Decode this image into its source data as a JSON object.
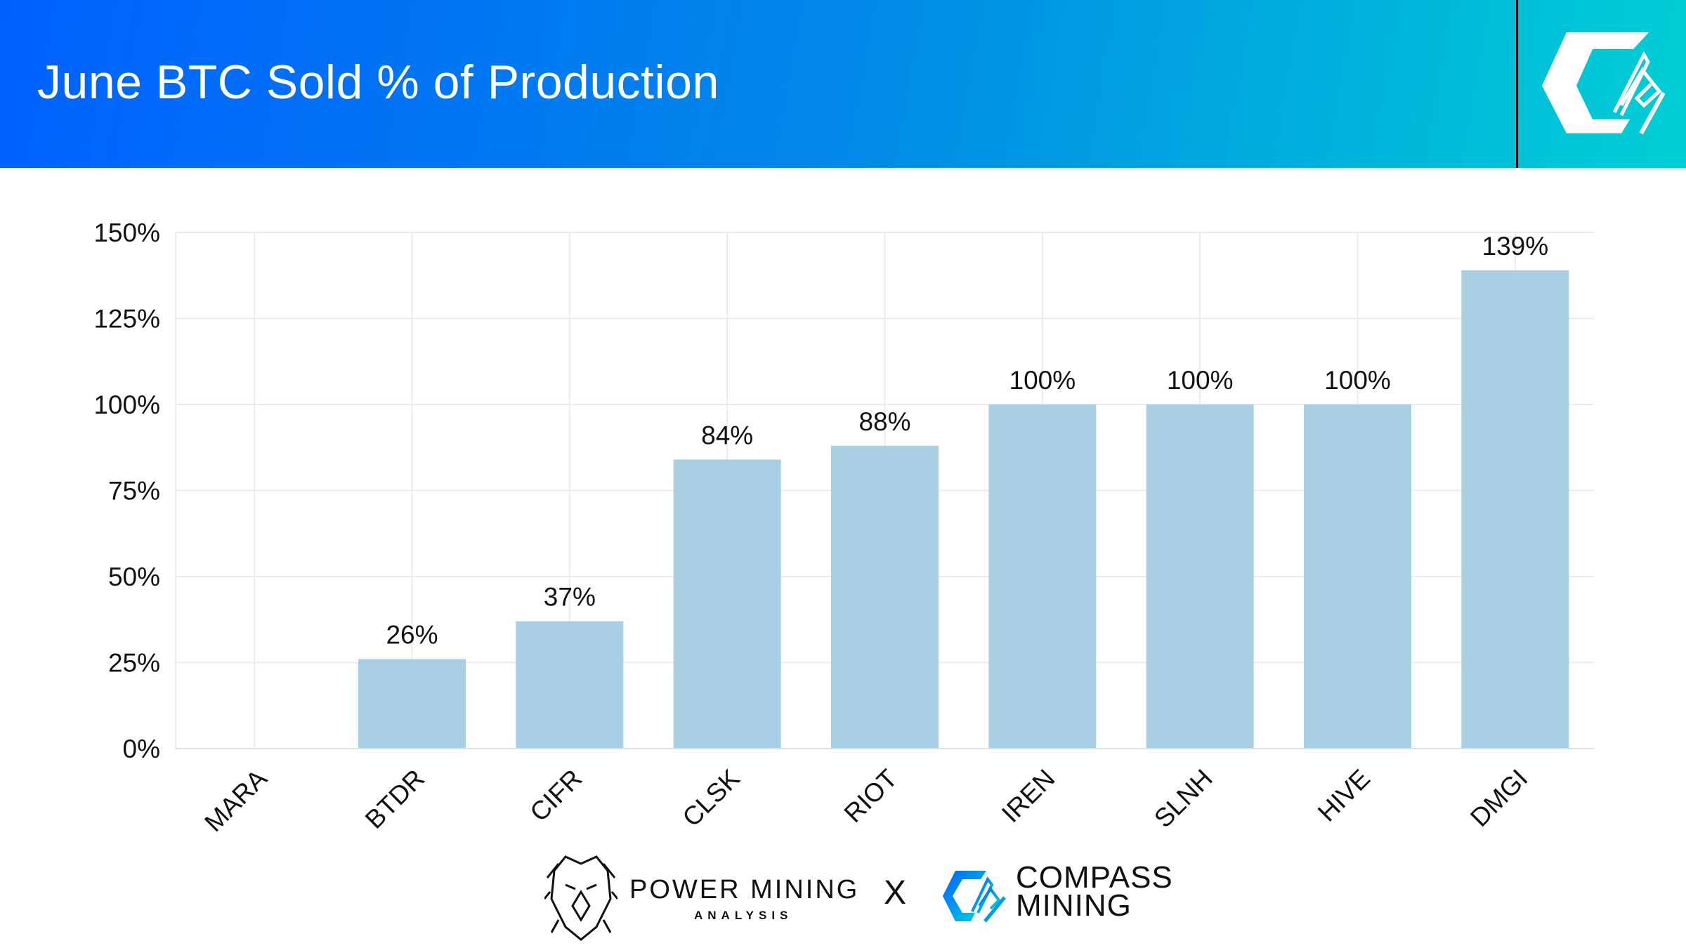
{
  "header": {
    "title": "June BTC Sold % of Production",
    "logo": "compass-mining-logo"
  },
  "colors": {
    "bar": "#a8cfe3",
    "grid": "#ececec",
    "header_start": "#0060ff",
    "header_end": "#00cfd4"
  },
  "chart_data": {
    "type": "bar",
    "title": "",
    "xlabel": "",
    "ylabel": "",
    "categories": [
      "MARA",
      "BTDR",
      "CIFR",
      "CLSK",
      "RIOT",
      "IREN",
      "SLNH",
      "HIVE",
      "DMGI"
    ],
    "values": [
      0,
      26,
      37,
      84,
      88,
      100,
      100,
      100,
      139
    ],
    "data_labels": [
      "",
      "26%",
      "37%",
      "84%",
      "88%",
      "100%",
      "100%",
      "100%",
      "139%"
    ],
    "ylim": [
      0,
      150
    ],
    "yticks": [
      0,
      25,
      50,
      75,
      100,
      125,
      150
    ],
    "ytick_labels": [
      "0%",
      "25%",
      "50%",
      "75%",
      "100%",
      "125%",
      "150%"
    ],
    "grid": true,
    "legend": "none"
  },
  "footer": {
    "power_mining": "POWER MINING",
    "power_mining_sub": "ANALYSIS",
    "separator": "X",
    "compass_line1": "COMPASS",
    "compass_line2": "MINING"
  }
}
